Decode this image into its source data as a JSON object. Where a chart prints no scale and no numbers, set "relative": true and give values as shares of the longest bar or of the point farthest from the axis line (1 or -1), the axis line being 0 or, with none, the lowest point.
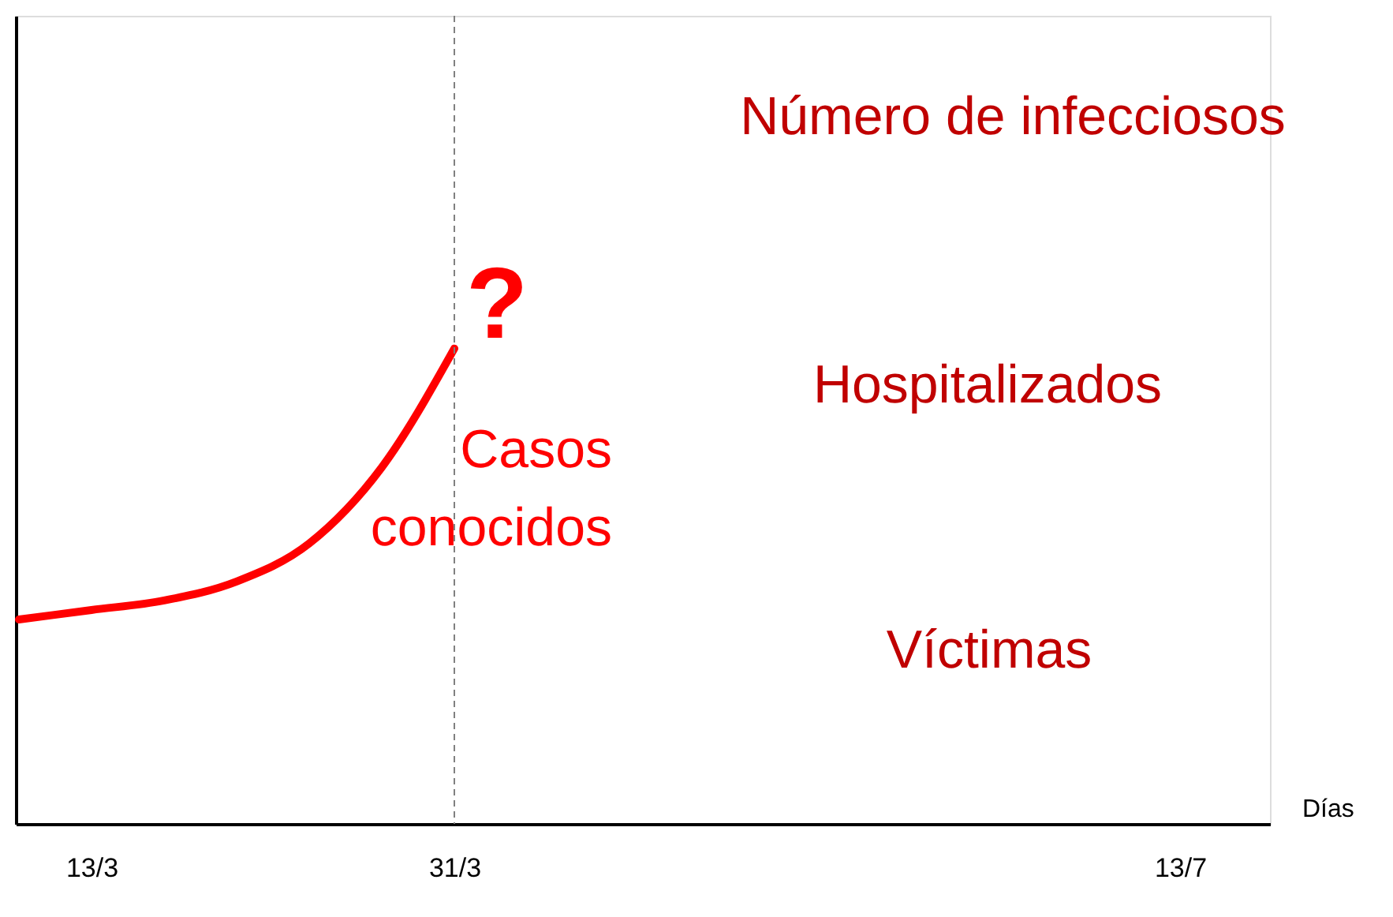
{
  "chart_data": {
    "type": "line",
    "relative": true,
    "xlabel": "Días",
    "categories": [
      null,
      "13/3",
      null,
      null,
      null,
      null,
      "31/3",
      null,
      null,
      null,
      null,
      null,
      null,
      null,
      null,
      null,
      "13/7",
      null
    ],
    "series": [
      {
        "color": "#ff0000",
        "values": [
          0.43,
          0.45,
          0.47,
          0.51,
          0.59,
          0.75,
          1,
          null,
          null,
          null,
          null,
          null,
          null,
          null,
          null,
          null,
          null,
          null
        ]
      }
    ],
    "ref_lines": [
      {
        "axis": "x",
        "value": "31/3",
        "color": "#808080",
        "line_style": "dashed"
      }
    ],
    "annotations": [
      "Número de infecciosos",
      "Hospitalizados",
      "Víctimas",
      "?",
      "Casos\nconocidos"
    ]
  }
}
